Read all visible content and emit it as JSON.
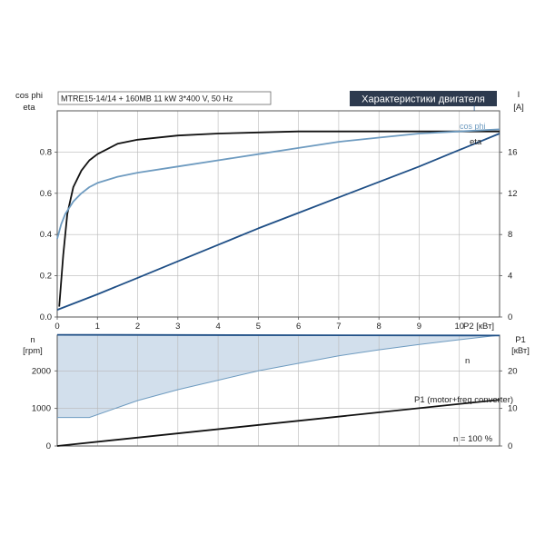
{
  "top": {
    "info": "MTRE15-14/14 + 160MB   11 kW   3*400 V, 50 Hz",
    "title_box": "Характеристики двигателя",
    "left_label_1": "cos phi",
    "left_label_2": "eta",
    "right_label_1": "I",
    "right_label_2": "[A]",
    "x_label": "P2 [кВт]",
    "label_cosphi": "cos phi",
    "label_eta": "eta",
    "label_I": "I"
  },
  "bottom": {
    "left_label_1": "n",
    "left_label_2": "[rpm]",
    "right_label_1": "P1",
    "right_label_2": "[кВт]",
    "label_n": "n",
    "label_p1": "P1 (motor+freq.converter)",
    "note": "n = 100 %"
  },
  "colors": {
    "eta": "#111111",
    "cosphi": "#6e9bc0",
    "current": "#1f4f86",
    "speed_line": "#1f4f86",
    "speed_fill": "#d2dfec",
    "power": "#111111",
    "title_box_bg": "#2d3a4e",
    "title_box_text": "#ffffff"
  },
  "chart_data": [
    {
      "type": "line",
      "x": {
        "label": "P2 [кВт]",
        "range": [
          0,
          11
        ],
        "ticks": [
          0,
          1,
          2,
          3,
          4,
          5,
          6,
          7,
          8,
          9,
          10
        ]
      },
      "y_left": {
        "label": "cos phi / eta",
        "range": [
          0,
          1
        ],
        "ticks": [
          0.0,
          0.2,
          0.4,
          0.6,
          0.8
        ]
      },
      "y_right": {
        "label": "I [A]",
        "range": [
          0,
          20
        ],
        "ticks": [
          0,
          4,
          8,
          12,
          16
        ]
      },
      "series": [
        {
          "name": "eta",
          "axis": "left",
          "x": [
            0.05,
            0.15,
            0.25,
            0.4,
            0.6,
            0.8,
            1.0,
            1.5,
            2,
            3,
            4,
            5,
            6,
            7,
            8,
            9,
            10,
            11
          ],
          "y": [
            0.05,
            0.3,
            0.5,
            0.63,
            0.71,
            0.76,
            0.79,
            0.84,
            0.86,
            0.88,
            0.89,
            0.895,
            0.9,
            0.9,
            0.9,
            0.9,
            0.9,
            0.9
          ]
        },
        {
          "name": "cos phi",
          "axis": "left",
          "x": [
            0,
            0.1,
            0.2,
            0.4,
            0.6,
            0.8,
            1.0,
            1.5,
            2,
            3,
            4,
            5,
            6,
            7,
            8,
            9,
            10,
            11
          ],
          "y": [
            0.38,
            0.45,
            0.5,
            0.56,
            0.6,
            0.63,
            0.65,
            0.68,
            0.7,
            0.73,
            0.76,
            0.79,
            0.82,
            0.85,
            0.87,
            0.89,
            0.9,
            0.91
          ]
        },
        {
          "name": "I",
          "axis": "right",
          "x": [
            0,
            1,
            2,
            3,
            4,
            5,
            6,
            7,
            8,
            9,
            10,
            11
          ],
          "y": [
            0.7,
            2.2,
            3.8,
            5.4,
            7.0,
            8.6,
            10.1,
            11.6,
            13.1,
            14.6,
            16.2,
            17.8
          ]
        }
      ]
    },
    {
      "type": "area",
      "x": {
        "range": [
          0,
          11
        ]
      },
      "y_left": {
        "label": "n [rpm]",
        "range": [
          0,
          2950
        ],
        "ticks": [
          0,
          1000,
          2000
        ]
      },
      "y_right": {
        "label": "P1 [кВт]",
        "range": [
          0,
          29.5
        ],
        "ticks": [
          0,
          10,
          20
        ]
      },
      "series": [
        {
          "name": "n",
          "axis": "left",
          "x": [
            0,
            11
          ],
          "y": [
            2960,
            2940
          ]
        },
        {
          "name": "n min",
          "axis": "left",
          "x": [
            0,
            0.8,
            2,
            3,
            4,
            5,
            6,
            7,
            8,
            9,
            10,
            11
          ],
          "y": [
            760,
            760,
            1210,
            1500,
            1750,
            2000,
            2200,
            2400,
            2560,
            2700,
            2830,
            2950
          ]
        },
        {
          "name": "P1 (motor+freq.converter)",
          "axis": "right",
          "x": [
            0,
            11
          ],
          "y": [
            0,
            12.3
          ]
        }
      ]
    }
  ]
}
